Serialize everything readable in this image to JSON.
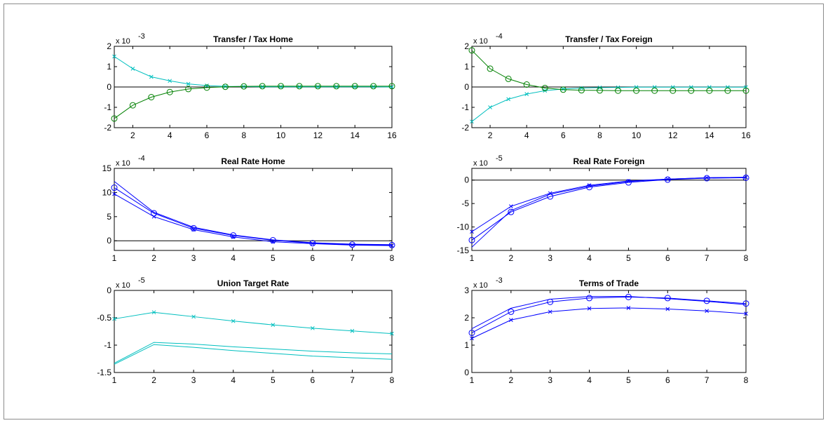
{
  "chart_data": [
    {
      "id": "p1",
      "type": "line",
      "title": "Transfer / Tax  Home",
      "exponent_label": "x 10",
      "exponent_sup": "-3",
      "xlim": [
        1,
        16
      ],
      "ylim": [
        -2,
        2
      ],
      "xticks": [
        2,
        4,
        6,
        8,
        10,
        12,
        14,
        16
      ],
      "yticks": [
        -2,
        -1,
        0,
        1,
        2
      ],
      "ytick_labels": [
        "-2",
        "-1",
        "0",
        "1",
        "2"
      ],
      "zero_line": true,
      "x": [
        1,
        2,
        3,
        4,
        5,
        6,
        7,
        8,
        9,
        10,
        11,
        12,
        13,
        14,
        15,
        16
      ],
      "series": [
        {
          "color": "#00bfbf",
          "marker": "x",
          "values": [
            1.5,
            0.9,
            0.5,
            0.3,
            0.15,
            0.07,
            0.03,
            0.02,
            0.01,
            0.01,
            0.01,
            0.01,
            0.01,
            0.01,
            0.01,
            0.0
          ]
        },
        {
          "color": "#008000",
          "marker": "o",
          "values": [
            -1.55,
            -0.9,
            -0.5,
            -0.25,
            -0.1,
            -0.03,
            0.01,
            0.03,
            0.04,
            0.04,
            0.04,
            0.04,
            0.04,
            0.04,
            0.04,
            0.04
          ]
        }
      ]
    },
    {
      "id": "p2",
      "type": "line",
      "title": "Transfer / Tax Foreign",
      "exponent_label": "x 10",
      "exponent_sup": "-4",
      "xlim": [
        1,
        16
      ],
      "ylim": [
        -2,
        2
      ],
      "xticks": [
        2,
        4,
        6,
        8,
        10,
        12,
        14,
        16
      ],
      "yticks": [
        -2,
        -1,
        0,
        1,
        2
      ],
      "ytick_labels": [
        "-2",
        "-1",
        "0",
        "1",
        "2"
      ],
      "zero_line": true,
      "x": [
        1,
        2,
        3,
        4,
        5,
        6,
        7,
        8,
        9,
        10,
        11,
        12,
        13,
        14,
        15,
        16
      ],
      "series": [
        {
          "color": "#00bfbf",
          "marker": "x",
          "values": [
            -1.7,
            -1.0,
            -0.6,
            -0.35,
            -0.18,
            -0.1,
            -0.05,
            -0.03,
            -0.02,
            -0.01,
            -0.01,
            -0.01,
            -0.01,
            -0.01,
            -0.01,
            -0.01
          ]
        },
        {
          "color": "#008000",
          "marker": "o",
          "values": [
            1.8,
            0.9,
            0.4,
            0.12,
            -0.05,
            -0.13,
            -0.16,
            -0.17,
            -0.18,
            -0.18,
            -0.18,
            -0.18,
            -0.18,
            -0.18,
            -0.18,
            -0.18
          ]
        }
      ]
    },
    {
      "id": "p3",
      "type": "line",
      "title": "Real Rate Home",
      "exponent_label": "x 10",
      "exponent_sup": "-4",
      "xlim": [
        1,
        8
      ],
      "ylim": [
        -2,
        15
      ],
      "xticks": [
        1,
        2,
        3,
        4,
        5,
        6,
        7,
        8
      ],
      "yticks": [
        0,
        5,
        10,
        15
      ],
      "ytick_labels": [
        "0",
        "5",
        "10",
        "15"
      ],
      "zero_line": true,
      "x": [
        1,
        2,
        3,
        4,
        5,
        6,
        7,
        8
      ],
      "series": [
        {
          "color": "#0000ff",
          "marker": "o",
          "values": [
            11,
            5.7,
            2.6,
            1.1,
            0.1,
            -0.5,
            -0.8,
            -0.9
          ]
        },
        {
          "color": "#0000ff",
          "marker": "x",
          "values": [
            9.7,
            5.0,
            2.3,
            0.8,
            -0.2,
            -0.6,
            -0.9,
            -1.0
          ]
        },
        {
          "color": "#0000ff",
          "marker": "none",
          "values": [
            12.3,
            5.9,
            2.8,
            1.2,
            0.2,
            -0.4,
            -0.7,
            -0.8
          ]
        }
      ]
    },
    {
      "id": "p4",
      "type": "line",
      "title": "Real Rate Foreign",
      "exponent_label": "x 10",
      "exponent_sup": "-5",
      "xlim": [
        1,
        8
      ],
      "ylim": [
        -15,
        2.5
      ],
      "xticks": [
        1,
        2,
        3,
        4,
        5,
        6,
        7,
        8
      ],
      "yticks": [
        -15,
        -10,
        -5,
        0
      ],
      "ytick_labels": [
        "-15",
        "-10",
        "-5",
        "0"
      ],
      "zero_line": true,
      "x": [
        1,
        2,
        3,
        4,
        5,
        6,
        7,
        8
      ],
      "series": [
        {
          "color": "#0000ff",
          "marker": "o",
          "values": [
            -12.8,
            -6.8,
            -3.5,
            -1.5,
            -0.5,
            0.1,
            0.4,
            0.5
          ]
        },
        {
          "color": "#0000ff",
          "marker": "x",
          "values": [
            -11,
            -5.6,
            -2.8,
            -1.1,
            -0.2,
            0.2,
            0.5,
            0.6
          ]
        },
        {
          "color": "#0000ff",
          "marker": "none",
          "values": [
            -14.3,
            -6.5,
            -3.0,
            -1.3,
            -0.3,
            0.2,
            0.5,
            0.6
          ]
        }
      ]
    },
    {
      "id": "p5",
      "type": "line",
      "title": "Union Target Rate",
      "exponent_label": "x 10",
      "exponent_sup": "-5",
      "xlim": [
        1,
        8
      ],
      "ylim": [
        -1.5,
        0
      ],
      "xticks": [
        1,
        2,
        3,
        4,
        5,
        6,
        7,
        8
      ],
      "yticks": [
        -1.5,
        -1,
        -0.5,
        0
      ],
      "ytick_labels": [
        "-1.5",
        "-1",
        "-0.5",
        "0"
      ],
      "zero_line": false,
      "x": [
        1,
        2,
        3,
        4,
        5,
        6,
        7,
        8
      ],
      "series": [
        {
          "color": "#00bfbf",
          "marker": "x",
          "values": [
            -0.52,
            -0.4,
            -0.48,
            -0.56,
            -0.63,
            -0.69,
            -0.74,
            -0.79
          ]
        },
        {
          "color": "#00bfbf",
          "marker": "none",
          "values": [
            -1.33,
            -0.95,
            -0.98,
            -1.03,
            -1.07,
            -1.11,
            -1.14,
            -1.16
          ]
        },
        {
          "color": "#00bfbf",
          "marker": "none",
          "values": [
            -1.35,
            -0.99,
            -1.04,
            -1.1,
            -1.15,
            -1.2,
            -1.23,
            -1.26
          ]
        }
      ]
    },
    {
      "id": "p6",
      "type": "line",
      "title": "Terms of Trade",
      "exponent_label": "x 10",
      "exponent_sup": "-3",
      "xlim": [
        1,
        8
      ],
      "ylim": [
        0,
        3
      ],
      "xticks": [
        1,
        2,
        3,
        4,
        5,
        6,
        7,
        8
      ],
      "yticks": [
        0,
        1,
        2,
        3
      ],
      "ytick_labels": [
        "0",
        "1",
        "2",
        "3"
      ],
      "zero_line": false,
      "x": [
        1,
        2,
        3,
        4,
        5,
        6,
        7,
        8
      ],
      "series": [
        {
          "color": "#0000ff",
          "marker": "o",
          "values": [
            1.45,
            2.22,
            2.58,
            2.72,
            2.76,
            2.72,
            2.62,
            2.52
          ]
        },
        {
          "color": "#0000ff",
          "marker": "x",
          "values": [
            1.25,
            1.92,
            2.22,
            2.34,
            2.36,
            2.32,
            2.25,
            2.15
          ]
        },
        {
          "color": "#0000ff",
          "marker": "none",
          "values": [
            1.6,
            2.35,
            2.68,
            2.78,
            2.78,
            2.7,
            2.6,
            2.48
          ]
        }
      ]
    }
  ]
}
